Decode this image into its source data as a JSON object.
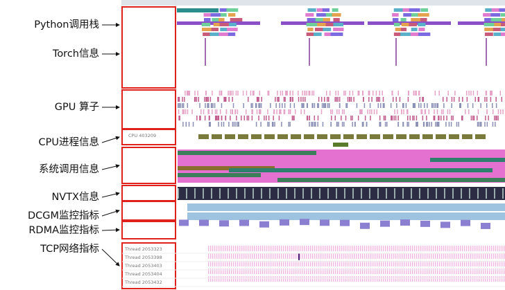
{
  "annotations": [
    "Python调用栈",
    "Torch信息",
    "GPU 算子",
    "CPU进程信息",
    "系统调用信息",
    "NVTX信息",
    "DCGM监控指标",
    "RDMA监控指标",
    "TCP网络指标"
  ],
  "tracks": {
    "cpu": "CPU 403209",
    "threads": [
      "Thread 2053323",
      "Thread 2053398",
      "Thread 2053403",
      "Thread 2053404",
      "Thread 2053432"
    ]
  }
}
